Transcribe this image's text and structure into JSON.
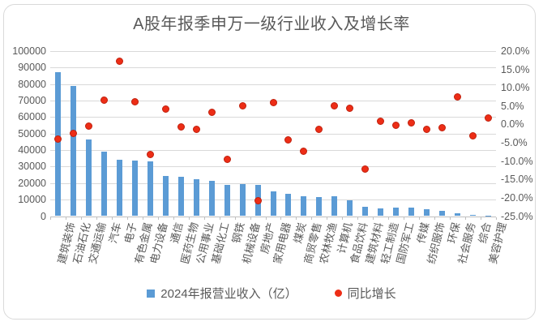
{
  "title": "A股年报季申万一级行业收入及增长率",
  "legend": {
    "bar_label": "2024年报营业收入（亿）",
    "dot_label": "同比增长"
  },
  "colors": {
    "bar": "#5B9BD5",
    "dot_fill": "#ED2D16",
    "dot_border": "#C0200D",
    "gridline": "#D9D9D9",
    "axis_line": "#BFBFBF",
    "text": "#595959",
    "frame_border": "#D9D9D9",
    "background": "#FFFFFF"
  },
  "chart_data": {
    "type": "bar",
    "subtype": "combo-bar-with-scatter",
    "title": "A股年报季申万一级行业收入及增长率",
    "grid": true,
    "legend_position": "bottom",
    "categories": [
      "建筑装饰",
      "石油石化",
      "交通运输",
      "汽车",
      "电子",
      "有色金属",
      "电力设备",
      "通信",
      "医药生物",
      "公用事业",
      "基础化工",
      "钢铁",
      "机械设备",
      "房地产",
      "家用电器",
      "煤炭",
      "商贸零售",
      "农林牧渔",
      "计算机",
      "食品饮料",
      "建筑材料",
      "轻工制造",
      "国防军工",
      "传媒",
      "纺织服饰",
      "环保",
      "社会服务",
      "综合",
      "美容护理"
    ],
    "series": [
      {
        "name": "2024年报营业收入（亿）",
        "type": "bar",
        "axis": "left",
        "values": [
          87000,
          79000,
          46600,
          39000,
          34000,
          33700,
          33000,
          24500,
          23800,
          22500,
          21200,
          19000,
          19500,
          19000,
          15000,
          13400,
          12000,
          11700,
          11800,
          9600,
          5800,
          4700,
          5400,
          5000,
          4300,
          3000,
          1700,
          600,
          300
        ]
      },
      {
        "name": "同比增长",
        "type": "scatter",
        "axis": "right",
        "values_pct": [
          -3.9,
          -2.5,
          -0.5,
          6.7,
          17.2,
          6.2,
          -8.1,
          4.1,
          -0.7,
          -1.3,
          3.2,
          -9.6,
          5.1,
          -20.7,
          5.9,
          -4.2,
          -7.2,
          -1.4,
          5.1,
          4.3,
          -12.1,
          0.9,
          -0.2,
          0.4,
          -1.4,
          -0.9,
          7.4,
          -3.1,
          1.7
        ]
      }
    ],
    "left_axis": {
      "min": 0,
      "max": 100000,
      "step": 10000,
      "tick_labels": [
        "100000",
        "90000",
        "80000",
        "70000",
        "60000",
        "50000",
        "40000",
        "30000",
        "20000",
        "10000",
        "0"
      ]
    },
    "right_axis": {
      "min": -25,
      "max": 20,
      "step": 5,
      "tick_labels": [
        "20.0%",
        "15.0%",
        "10.0%",
        "5.0%",
        "0.0%",
        "-5.0%",
        "-10.0%",
        "-15.0%",
        "-20.0%",
        "-25.0%"
      ]
    }
  }
}
